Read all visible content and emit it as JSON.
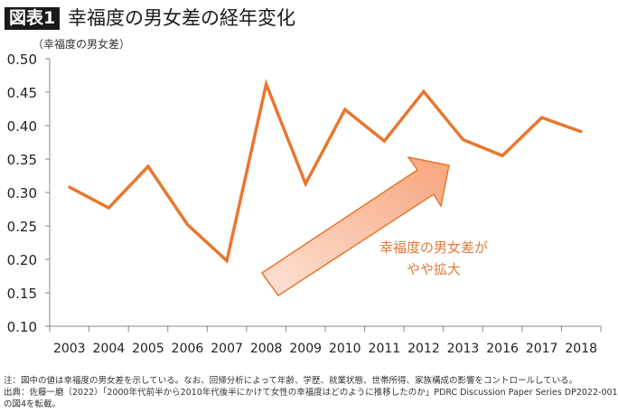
{
  "header": {
    "badge": "図表1",
    "title": "幸福度の男女差の経年変化"
  },
  "chart_data": {
    "type": "line",
    "title": "幸福度の男女差の経年変化",
    "ylabel": "（幸福度の男女差）",
    "xlabel": "",
    "categories": [
      "2003",
      "2004",
      "2005",
      "2006",
      "2007",
      "2008",
      "2009",
      "2010",
      "2011",
      "2012",
      "2013",
      "2016",
      "2017",
      "2018"
    ],
    "values": [
      0.308,
      0.277,
      0.339,
      0.252,
      0.198,
      0.462,
      0.313,
      0.424,
      0.377,
      0.451,
      0.379,
      0.355,
      0.412,
      0.391
    ],
    "ylim": [
      0.1,
      0.5
    ],
    "yticks": [
      "0.10",
      "0.15",
      "0.20",
      "0.25",
      "0.30",
      "0.35",
      "0.40",
      "0.45",
      "0.50"
    ],
    "grid": false,
    "line_color": "#e8772e",
    "annotation": {
      "line1": "幸福度の男女差が",
      "line2": "やや拡大",
      "color": "#e07a3a",
      "arrow": "up-right trend arrow"
    }
  },
  "footer": {
    "note": "注：図中の値は幸福度の男女差を示している。なお、回帰分析によって年齢、学歴、就業状態、世帯所得、家族構成の影響をコントロールしている。",
    "source": "出典：佐藤一磨（2022）「2000年代前半から2010年代後半にかけて女性の幸福度はどのように推移したのか」PDRC Discussion Paper Series DP2022-001",
    "source2": "の図4を転載。"
  }
}
